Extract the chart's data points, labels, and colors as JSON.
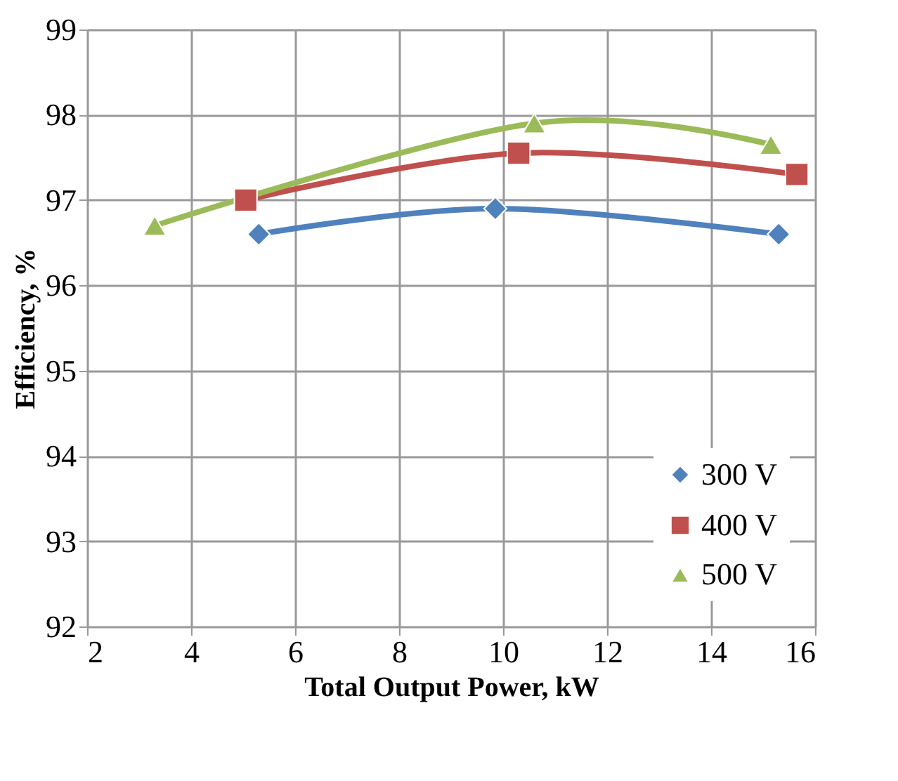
{
  "chart_data": {
    "type": "line",
    "xlabel": "Total Output Power, kW",
    "ylabel": "Efficiency, %",
    "xlim": [
      2,
      16
    ],
    "xticks": [
      2,
      4,
      6,
      8,
      10,
      12,
      14,
      16
    ],
    "ylim": [
      92,
      99
    ],
    "yticks": [
      92,
      93,
      94,
      95,
      96,
      97,
      98,
      99
    ],
    "grid": true,
    "legend": "bottom right",
    "line_style": "solid",
    "series": [
      {
        "name": "300 V",
        "color": "#4f81bd",
        "marker": "diamond",
        "x": [
          5.3,
          9.85,
          15.3
        ],
        "values": [
          96.6,
          96.9,
          96.6
        ]
      },
      {
        "name": "400 V",
        "color": "#c0504d",
        "marker": "square",
        "x": [
          5.05,
          10.3,
          15.65
        ],
        "values": [
          97.0,
          97.55,
          97.3
        ]
      },
      {
        "name": "500 V",
        "color": "#9bbb59",
        "marker": "triangle",
        "x": [
          3.3,
          10.6,
          15.15
        ],
        "values": [
          96.7,
          97.9,
          97.65
        ]
      }
    ]
  }
}
